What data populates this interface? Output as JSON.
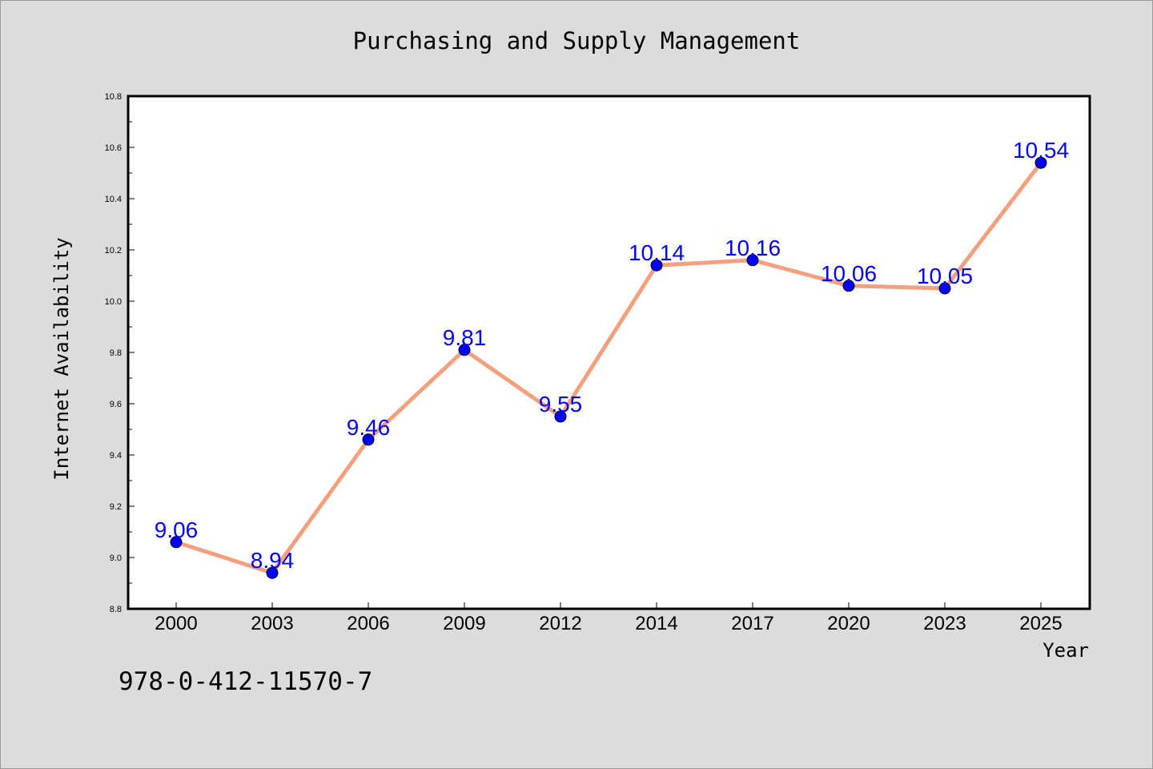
{
  "chart_data": {
    "type": "line",
    "title": "Purchasing and Supply Management",
    "xlabel": "Year",
    "ylabel": "Internet Availability",
    "categories": [
      "2000",
      "2003",
      "2006",
      "2009",
      "2012",
      "2014",
      "2017",
      "2020",
      "2023",
      "2025"
    ],
    "series": [
      {
        "values": [
          9.06,
          8.94,
          9.46,
          9.81,
          9.55,
          10.14,
          10.16,
          10.06,
          10.05,
          10.54
        ]
      }
    ],
    "data_labels": [
      "9.06",
      "8.94",
      "9.46",
      "9.81",
      "9.55",
      "10.14",
      "10.16",
      "10.06",
      "10.05",
      "10.54"
    ],
    "ylim": [
      8.8,
      10.8
    ],
    "y_ticks": [
      "8.8",
      "9.0",
      "9.2",
      "9.4",
      "9.6",
      "9.8",
      "10.0",
      "10.2",
      "10.4",
      "10.6",
      "10.8"
    ],
    "grid": false,
    "legend": "none",
    "colors": {
      "line": "#f4a07e",
      "marker": "#0000ff",
      "label": "#0000ff",
      "background": "#dcdcdc",
      "plot_area": "#ffffff"
    }
  },
  "footer_text": "978-0-412-11570-7"
}
